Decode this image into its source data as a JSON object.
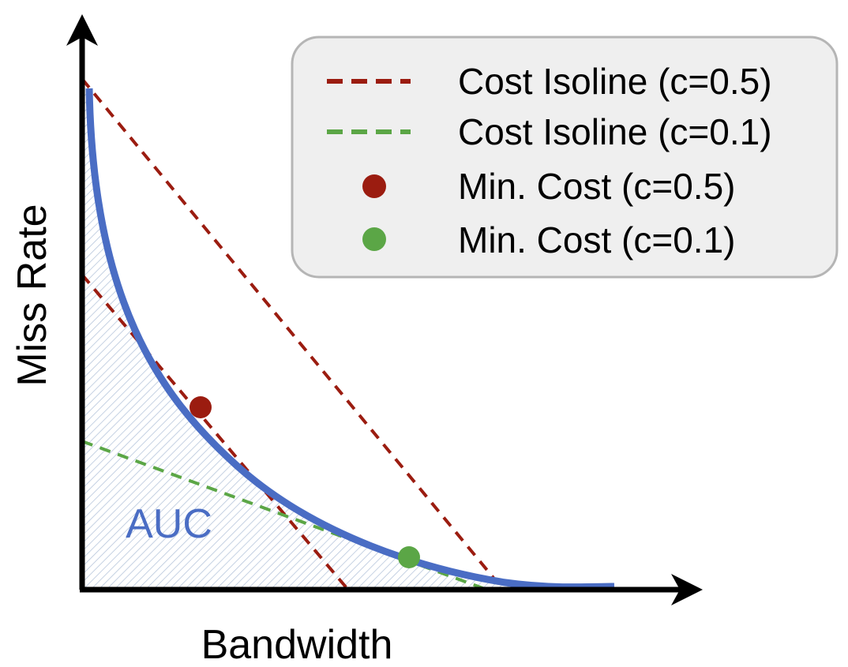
{
  "chart_data": {
    "type": "line",
    "title": "",
    "xlabel": "Bandwidth",
    "ylabel": "Miss Rate",
    "area_label": "AUC",
    "axes": {
      "x_arrow": true,
      "y_arrow": true,
      "ticks": false,
      "grid": false
    },
    "series": [
      {
        "name": "Miss Rate vs. Bandwidth curve",
        "role": "curve",
        "color": "#4A6DC4"
      },
      {
        "name": "Cost Isoline (c=0.5)",
        "role": "isoline",
        "style": "dashed",
        "color": "#9B1C10"
      },
      {
        "name": "Cost Isoline (c=0.1)",
        "role": "isoline",
        "style": "dashed",
        "color": "#5BA646"
      },
      {
        "name": "Min. Cost (c=0.5)",
        "role": "marker",
        "color": "#9B1C10"
      },
      {
        "name": "Min. Cost (c=0.1)",
        "role": "marker",
        "color": "#5BA646"
      }
    ],
    "legend": {
      "position": "top-right",
      "entries": [
        {
          "label": "Cost Isoline (c=0.5)",
          "kind": "dashed-line",
          "color": "#9B1C10"
        },
        {
          "label": "Cost Isoline (c=0.1)",
          "kind": "dashed-line",
          "color": "#5BA646"
        },
        {
          "label": "Min. Cost (c=0.5)",
          "kind": "dot",
          "color": "#9B1C10"
        },
        {
          "label": "Min. Cost (c=0.1)",
          "kind": "dot",
          "color": "#5BA646"
        }
      ]
    },
    "colors": {
      "curve": "#4A6DC4",
      "auc_hatch": "#B7C6DC",
      "legend_background": "#EFEFEF",
      "legend_border": "#B5B5B5",
      "axis": "#000000"
    }
  }
}
